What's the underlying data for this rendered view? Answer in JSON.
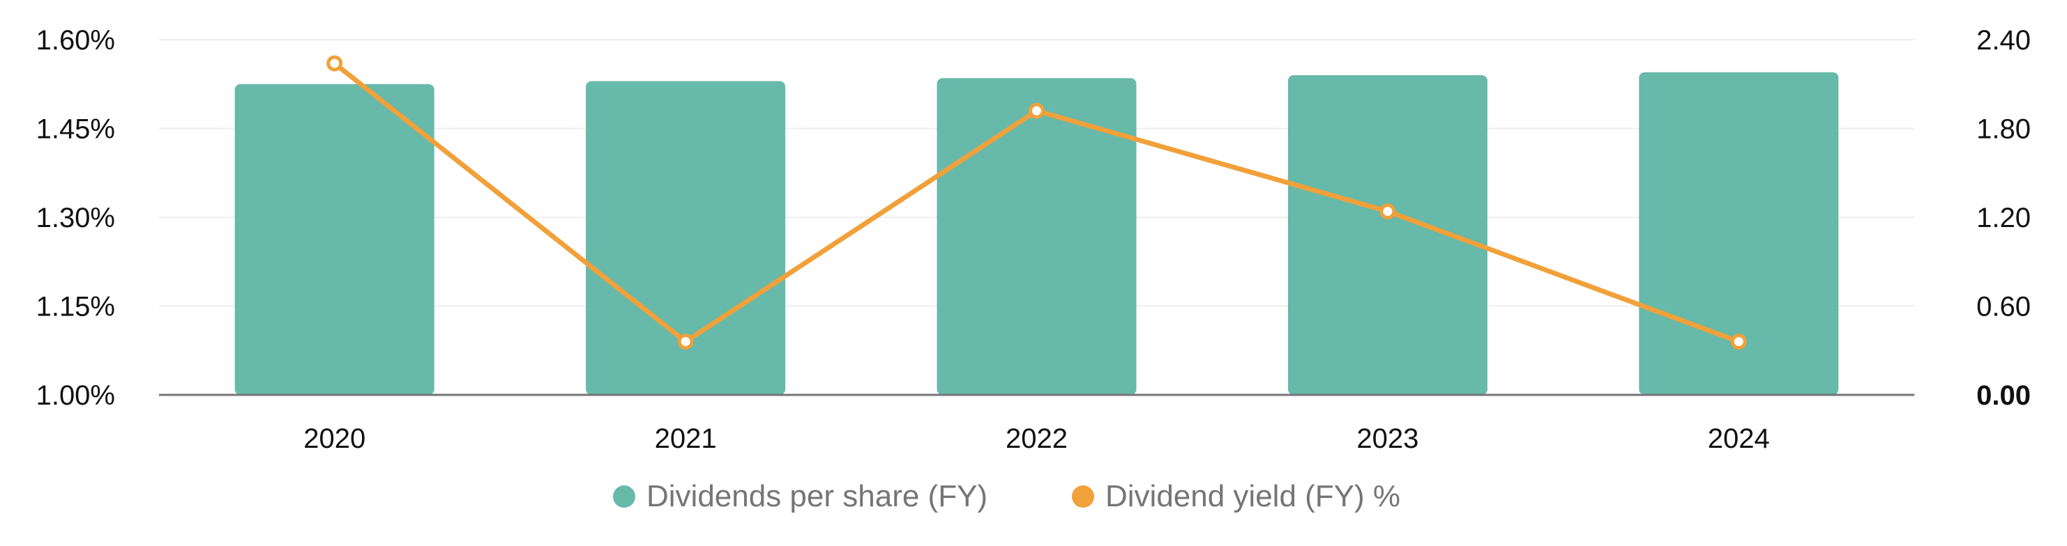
{
  "chart_data": {
    "type": "bar",
    "categories": [
      "2020",
      "2021",
      "2022",
      "2023",
      "2024"
    ],
    "series": [
      {
        "name": "Dividends per share (FY)",
        "type": "bar",
        "axis": "right",
        "color": "#67b9a9",
        "values": [
          2.1,
          2.12,
          2.14,
          2.16,
          2.18
        ]
      },
      {
        "name": "Dividend yield (FY) %",
        "type": "line",
        "axis": "left",
        "color": "#f1a03a",
        "values": [
          1.56,
          1.09,
          1.48,
          1.31,
          1.09
        ]
      }
    ],
    "left_axis": {
      "ticks": [
        "1.00%",
        "1.15%",
        "1.30%",
        "1.45%",
        "1.60%"
      ],
      "tick_values": [
        1.0,
        1.15,
        1.3,
        1.45,
        1.6
      ],
      "range": [
        1.0,
        1.6
      ]
    },
    "right_axis": {
      "ticks": [
        "0.00",
        "0.60",
        "1.20",
        "1.80",
        "2.40"
      ],
      "tick_values": [
        0.0,
        0.6,
        1.2,
        1.8,
        2.4
      ],
      "range": [
        0.0,
        2.4
      ]
    },
    "grid": true,
    "legend_position": "bottom-center"
  }
}
